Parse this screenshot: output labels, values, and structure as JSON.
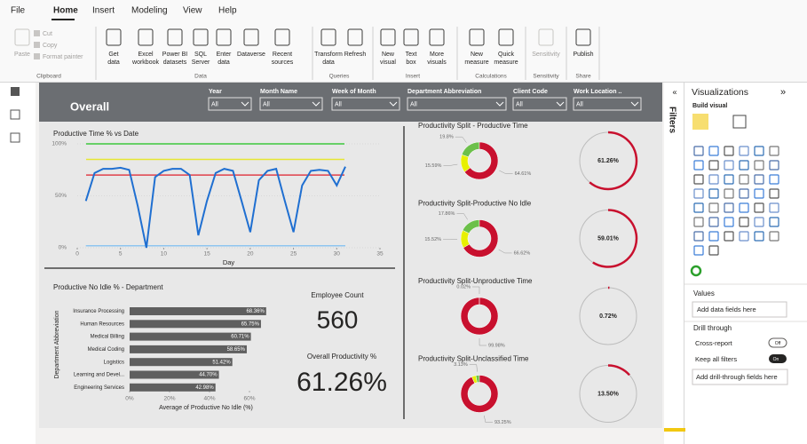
{
  "menu": {
    "items": [
      "File",
      "Home",
      "Insert",
      "Modeling",
      "View",
      "Help"
    ]
  },
  "ribbon": {
    "groups": [
      {
        "label": "Clipboard",
        "items": [
          [
            "Paste"
          ],
          [
            "Cut"
          ],
          [
            "Copy"
          ],
          [
            "Format painter"
          ]
        ]
      },
      {
        "label": "Data",
        "items": [
          [
            "Get",
            "data"
          ],
          [
            "Excel",
            "workbook"
          ],
          [
            "Power BI",
            "datasets"
          ],
          [
            "SQL",
            "Server"
          ],
          [
            "Enter",
            "data"
          ],
          [
            "Dataverse"
          ],
          [
            "Recent",
            "sources"
          ]
        ]
      },
      {
        "label": "Queries",
        "items": [
          [
            "Transform",
            "data"
          ],
          [
            "Refresh"
          ]
        ]
      },
      {
        "label": "Insert",
        "items": [
          [
            "New",
            "visual"
          ],
          [
            "Text",
            "box"
          ],
          [
            "More",
            "visuals"
          ]
        ]
      },
      {
        "label": "Calculations",
        "items": [
          [
            "New",
            "measure"
          ],
          [
            "Quick",
            "measure"
          ]
        ]
      },
      {
        "label": "Sensitivity",
        "items": [
          [
            "Sensitivity"
          ]
        ]
      },
      {
        "label": "Share",
        "items": [
          [
            "Publish"
          ]
        ]
      }
    ]
  },
  "report": {
    "title": "Overall",
    "slicers": [
      {
        "label": "Year",
        "value": "All"
      },
      {
        "label": "Month Name",
        "value": "All"
      },
      {
        "label": "Week of Month",
        "value": "All"
      },
      {
        "label": "Department Abbreviation",
        "value": "All"
      },
      {
        "label": "Client Code",
        "value": "All"
      },
      {
        "label": "Work Location ..",
        "value": "All"
      }
    ]
  },
  "line_chart": {
    "type": "line",
    "title": "Productive Time % vs Date",
    "x_label": "Day",
    "x": [
      1,
      2,
      3,
      4,
      5,
      6,
      7,
      8,
      9,
      10,
      11,
      12,
      13,
      14,
      15,
      16,
      17,
      18,
      19,
      20,
      21,
      22,
      23,
      24,
      25,
      26,
      27,
      28,
      29,
      30,
      31
    ],
    "series": [
      {
        "color": "#1f6fd1",
        "values": [
          45,
          72,
          76,
          76,
          77,
          75,
          40,
          0,
          68,
          74,
          76,
          76,
          70,
          12,
          45,
          72,
          76,
          74,
          45,
          15,
          65,
          74,
          76,
          45,
          15,
          60,
          74,
          75,
          74,
          60,
          78
        ]
      },
      {
        "color": "#8ec5f0",
        "values": [
          2,
          2,
          2,
          2,
          2,
          2,
          2,
          2,
          2,
          2,
          2,
          2,
          2,
          2,
          2,
          2,
          2,
          2,
          2,
          2,
          2,
          2,
          2,
          2,
          2,
          2,
          2,
          2,
          2,
          2,
          2
        ]
      }
    ],
    "reference_lines": [
      {
        "value": 100,
        "color": "#3cc83c"
      },
      {
        "value": 85,
        "color": "#e6e632"
      },
      {
        "value": 70,
        "color": "#e0404a"
      }
    ],
    "xlim": [
      0,
      35
    ],
    "xticks": [
      0,
      5,
      10,
      15,
      20,
      25,
      30,
      35
    ],
    "ylim": [
      0,
      100
    ],
    "yticks": [
      {
        "value": 0,
        "label": "0%"
      },
      {
        "value": 50,
        "label": "50%"
      },
      {
        "value": 100,
        "label": "100%"
      }
    ]
  },
  "bar_chart": {
    "type": "bar",
    "title": "Productive No Idle % - Department",
    "x_label": "Average of Productive No Idle (%)",
    "y_label": "Department Abbreviation",
    "categories": [
      "Insurance Processing",
      "Human Resources",
      "Medical Billing",
      "Medical Coding",
      "Logistics",
      "Learning and Devel...",
      "Engineering Services"
    ],
    "values": [
      68.36,
      65.75,
      60.71,
      58.65,
      51.42,
      44.7,
      42.98
    ],
    "value_labels": [
      "68.36%",
      "65.75%",
      "60.71%",
      "58.65%",
      "51.42%",
      "44.70%",
      "42.98%"
    ],
    "color": "#5f5f5f",
    "xlim": [
      0,
      70
    ],
    "xticks": [
      {
        "value": 0,
        "label": "0%"
      },
      {
        "value": 20,
        "label": "20%"
      },
      {
        "value": 40,
        "label": "40%"
      },
      {
        "value": 60,
        "label": "60%"
      }
    ]
  },
  "cards": [
    {
      "label": "Employee Count",
      "value": 560
    },
    {
      "label": "Overall Productivity %",
      "value": 61.26,
      "value_label": "61.26%"
    }
  ],
  "donuts": [
    {
      "type": "donut",
      "title": "Productivity Split - Productive Time",
      "values": [
        19.8,
        15.59,
        64.61
      ],
      "value_labels": [
        "19.8%",
        "15.59%",
        "64.61%"
      ],
      "colors": [
        "#6cc04a",
        "#e8f000",
        "#c8102e"
      ],
      "gauge": {
        "value": 61.26,
        "label": "61.26%"
      }
    },
    {
      "type": "donut",
      "title": "Productivity Split-Productive No Idle",
      "values": [
        17.86,
        15.52,
        66.62
      ],
      "value_labels": [
        "17.86%",
        "15.52%",
        "66.62%"
      ],
      "colors": [
        "#6cc04a",
        "#e8f000",
        "#c8102e"
      ],
      "gauge": {
        "value": 59.01,
        "label": "59.01%"
      }
    },
    {
      "type": "donut",
      "title": "Productivity Split-Unproductive Time",
      "values": [
        0.02,
        99.98
      ],
      "value_labels": [
        "0.02%",
        "99.98%"
      ],
      "colors": [
        "#6cc04a",
        "#c8102e"
      ],
      "gauge": {
        "value": 0.72,
        "label": "0.72%"
      }
    },
    {
      "type": "donut",
      "title": "Productivity Split-Unclassified Time",
      "values": [
        3.13,
        3.62,
        93.25
      ],
      "value_labels": [
        "3.13%",
        null,
        "93.25%"
      ],
      "colors": [
        "#6cc04a",
        "#e8f000",
        "#c8102e"
      ],
      "gauge": {
        "value": 13.5,
        "label": "13.50%"
      }
    }
  ],
  "filters_pane": {
    "title": "Filters"
  },
  "viz_pane": {
    "title": "Visualizations",
    "subtitle": "Build visual",
    "values_label": "Values",
    "values_placeholder": "Add data fields here",
    "drill_label": "Drill through",
    "cross_report": "Cross-report",
    "cross_report_state": "Off",
    "keep_filters": "Keep all filters",
    "keep_filters_state": "On",
    "drill_placeholder": "Add drill-through fields here"
  }
}
